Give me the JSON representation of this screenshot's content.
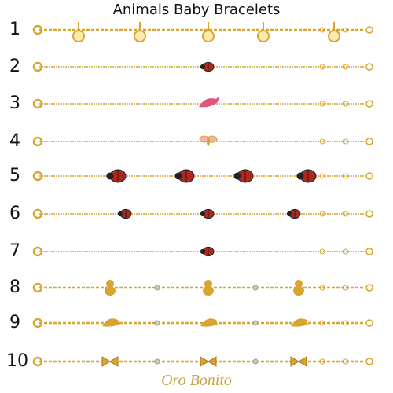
{
  "header": {
    "title": "Animals Baby Bracelets"
  },
  "rows": [
    {
      "label": "1"
    },
    {
      "label": "2"
    },
    {
      "label": "3"
    },
    {
      "label": "4"
    },
    {
      "label": "5"
    },
    {
      "label": "6"
    },
    {
      "label": "7"
    },
    {
      "label": "8"
    },
    {
      "label": "9"
    },
    {
      "label": "10"
    }
  ],
  "brand": "Oro Bonito"
}
